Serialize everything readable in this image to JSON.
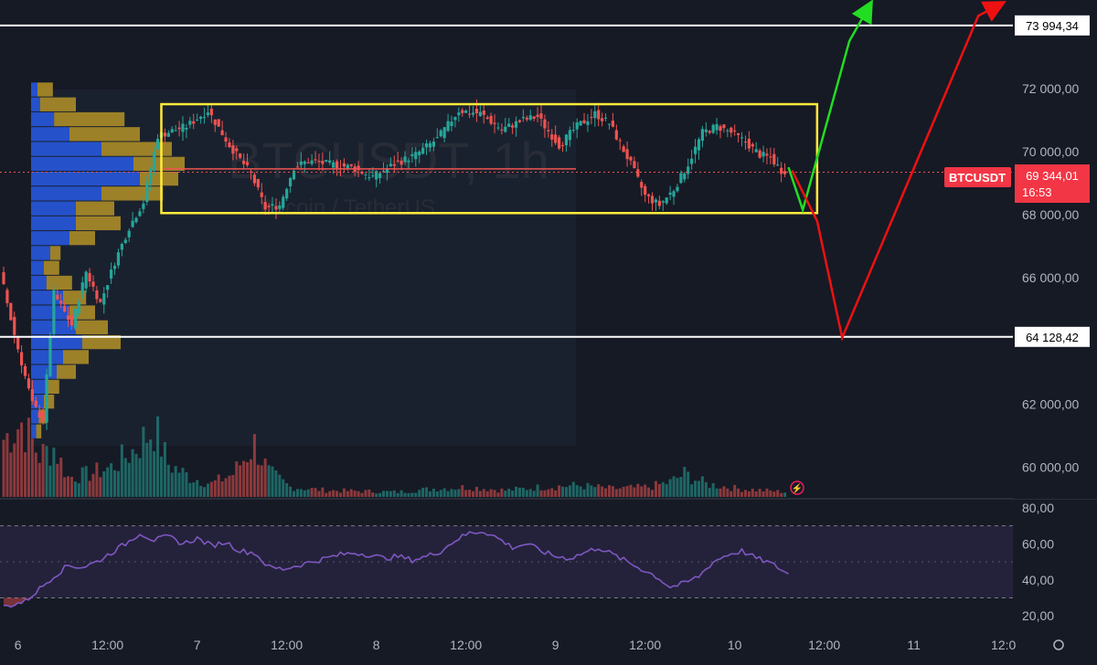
{
  "chart_data": {
    "type": "candlestick",
    "symbol": {
      "pair": "BTCUSDT",
      "timeframe": "1h",
      "watermark_line1": "BTCUSDT, 1h",
      "watermark_line2": "Bitcoin / TetherUS"
    },
    "colors": {
      "background": "#161a25",
      "up": "#26a69a",
      "down": "#ef5350",
      "rsi": "#7e57c2",
      "rectangle": "#ffeb3b",
      "bull_path": "#22dd22",
      "bear_path": "#ee1111",
      "level_line": "#ffffff",
      "poc_line": "#ef5350"
    },
    "y_axis": {
      "range": [
        59000,
        74800
      ],
      "ticks": [
        "72 000,00",
        "70 000,00",
        "68 000,00",
        "66 000,00",
        "62 000,00",
        "60 000,00"
      ]
    },
    "levels": [
      {
        "label": "73 994,34",
        "value": 73994.34
      },
      {
        "label": "64 128,42",
        "value": 64128.42
      }
    ],
    "current_price": {
      "symbol_label": "BTCUSDT",
      "price_label": "69 344,01",
      "countdown": "16:53",
      "value": 69344.01
    },
    "x_axis": {
      "labels": [
        "6",
        "12:00",
        "7",
        "12:00",
        "8",
        "12:00",
        "9",
        "12:00",
        "10",
        "12:00",
        "11",
        "12:0"
      ]
    },
    "rectangle": {
      "time_start": 44,
      "time_end": 227,
      "price_top": 71500,
      "price_bottom": 68050
    },
    "projections": {
      "bull": [
        [
          219,
          69500
        ],
        [
          223,
          68150
        ],
        [
          236,
          73500
        ],
        [
          241,
          74500
        ]
      ],
      "bear": [
        [
          220,
          69400
        ],
        [
          227,
          67800
        ],
        [
          234,
          64100
        ],
        [
          272,
          74300
        ],
        [
          277,
          74600
        ]
      ]
    },
    "candle_anchors": [
      [
        0,
        66200
      ],
      [
        4,
        64200
      ],
      [
        9,
        62000
      ],
      [
        12,
        61500
      ],
      [
        15,
        65500
      ],
      [
        20,
        64500
      ],
      [
        24,
        66200
      ],
      [
        28,
        65200
      ],
      [
        32,
        66500
      ],
      [
        36,
        67600
      ],
      [
        40,
        68400
      ],
      [
        44,
        70500
      ],
      [
        52,
        70800
      ],
      [
        58,
        71300
      ],
      [
        64,
        70200
      ],
      [
        70,
        69300
      ],
      [
        74,
        68200
      ],
      [
        78,
        68300
      ],
      [
        82,
        69500
      ],
      [
        86,
        69700
      ],
      [
        92,
        69600
      ],
      [
        98,
        69500
      ],
      [
        104,
        69200
      ],
      [
        110,
        69600
      ],
      [
        116,
        69900
      ],
      [
        122,
        70400
      ],
      [
        128,
        71300
      ],
      [
        134,
        71200
      ],
      [
        140,
        70700
      ],
      [
        146,
        71000
      ],
      [
        150,
        71100
      ],
      [
        156,
        70200
      ],
      [
        161,
        70800
      ],
      [
        166,
        71200
      ],
      [
        170,
        70900
      ],
      [
        176,
        69600
      ],
      [
        180,
        68600
      ],
      [
        184,
        68300
      ],
      [
        188,
        68800
      ],
      [
        192,
        69600
      ],
      [
        196,
        70600
      ],
      [
        200,
        70800
      ],
      [
        204,
        70600
      ],
      [
        208,
        70300
      ],
      [
        212,
        69900
      ],
      [
        215,
        69800
      ],
      [
        218,
        69400
      ]
    ],
    "volume_anchors": [
      [
        0,
        3.5
      ],
      [
        5,
        4.5
      ],
      [
        10,
        2.5
      ],
      [
        14,
        3.0
      ],
      [
        18,
        1.2
      ],
      [
        24,
        1.4
      ],
      [
        30,
        1.8
      ],
      [
        36,
        2.8
      ],
      [
        42,
        4.2
      ],
      [
        46,
        2.0
      ],
      [
        52,
        1.2
      ],
      [
        58,
        0.8
      ],
      [
        64,
        1.4
      ],
      [
        70,
        3.2
      ],
      [
        74,
        1.5
      ],
      [
        80,
        0.6
      ],
      [
        90,
        0.4
      ],
      [
        110,
        0.3
      ],
      [
        120,
        0.5
      ],
      [
        130,
        0.6
      ],
      [
        140,
        0.4
      ],
      [
        150,
        0.6
      ],
      [
        160,
        0.7
      ],
      [
        170,
        0.5
      ],
      [
        180,
        0.6
      ],
      [
        186,
        0.9
      ],
      [
        190,
        1.4
      ],
      [
        196,
        0.8
      ],
      [
        205,
        0.5
      ],
      [
        212,
        0.4
      ],
      [
        218,
        0.3
      ]
    ],
    "volume_profile": {
      "price_top": 72200,
      "price_bottom": 60900,
      "rows": [
        [
          0.05,
          0.12
        ],
        [
          0.07,
          0.28
        ],
        [
          0.18,
          0.55
        ],
        [
          0.3,
          0.55
        ],
        [
          0.55,
          0.55
        ],
        [
          0.8,
          0.4
        ],
        [
          0.85,
          0.3
        ],
        [
          0.55,
          0.48
        ],
        [
          0.35,
          0.3
        ],
        [
          0.35,
          0.35
        ],
        [
          0.3,
          0.2
        ],
        [
          0.15,
          0.08
        ],
        [
          0.1,
          0.12
        ],
        [
          0.12,
          0.2
        ],
        [
          0.25,
          0.18
        ],
        [
          0.3,
          0.2
        ],
        [
          0.35,
          0.25
        ],
        [
          0.4,
          0.3
        ],
        [
          0.25,
          0.2
        ],
        [
          0.2,
          0.15
        ],
        [
          0.12,
          0.1
        ],
        [
          0.1,
          0.08
        ],
        [
          0.06,
          0.06
        ],
        [
          0.04,
          0.04
        ]
      ]
    },
    "rsi": {
      "ticks": [
        "80,00",
        "60,00",
        "40,00",
        "20,00"
      ],
      "range": [
        12,
        84
      ],
      "upper": 70,
      "lower": 30,
      "anchors": [
        [
          0,
          25
        ],
        [
          6,
          28
        ],
        [
          10,
          35
        ],
        [
          14,
          42
        ],
        [
          18,
          48
        ],
        [
          22,
          47
        ],
        [
          26,
          50
        ],
        [
          30,
          55
        ],
        [
          34,
          60
        ],
        [
          38,
          66
        ],
        [
          42,
          62
        ],
        [
          46,
          64
        ],
        [
          50,
          60
        ],
        [
          54,
          63
        ],
        [
          58,
          59
        ],
        [
          62,
          61
        ],
        [
          66,
          56
        ],
        [
          70,
          55
        ],
        [
          74,
          47
        ],
        [
          78,
          46
        ],
        [
          82,
          48
        ],
        [
          86,
          50
        ],
        [
          90,
          52
        ],
        [
          94,
          54
        ],
        [
          98,
          55
        ],
        [
          102,
          54
        ],
        [
          106,
          52
        ],
        [
          110,
          53
        ],
        [
          114,
          51
        ],
        [
          118,
          53
        ],
        [
          122,
          56
        ],
        [
          126,
          62
        ],
        [
          130,
          66
        ],
        [
          134,
          67
        ],
        [
          138,
          63
        ],
        [
          142,
          58
        ],
        [
          146,
          60
        ],
        [
          150,
          56
        ],
        [
          154,
          53
        ],
        [
          158,
          52
        ],
        [
          162,
          55
        ],
        [
          166,
          58
        ],
        [
          170,
          54
        ],
        [
          174,
          50
        ],
        [
          178,
          46
        ],
        [
          182,
          42
        ],
        [
          186,
          36
        ],
        [
          190,
          38
        ],
        [
          194,
          42
        ],
        [
          198,
          50
        ],
        [
          202,
          54
        ],
        [
          206,
          56
        ],
        [
          210,
          52
        ],
        [
          213,
          50
        ],
        [
          216,
          47
        ],
        [
          219,
          43
        ]
      ]
    }
  }
}
